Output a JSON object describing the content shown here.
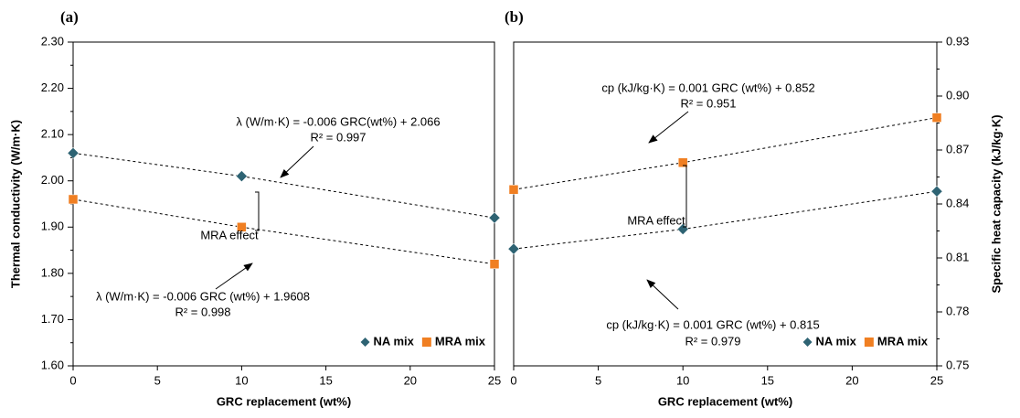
{
  "chart_data": [
    {
      "type": "scatter",
      "panel_label": "(a)",
      "x_label": "GRC replacement  (wt%)",
      "y_label": "Thermal conductivity  (W/m·K)",
      "x": [
        0,
        10,
        25
      ],
      "series": [
        {
          "name": "NA mix",
          "color": "#2e6373",
          "marker": "diamond",
          "values": [
            2.06,
            2.01,
            1.92
          ]
        },
        {
          "name": "MRA mix",
          "color": "#f07f22",
          "marker": "square",
          "values": [
            1.96,
            1.9,
            1.82
          ]
        }
      ],
      "xlim": [
        0,
        25
      ],
      "xticks": [
        0,
        5,
        10,
        15,
        20,
        25
      ],
      "ylim": [
        1.6,
        2.3
      ],
      "yticks": [
        {
          "value": 1.6,
          "label": "1.60"
        },
        {
          "value": 1.7,
          "label": "1.70"
        },
        {
          "value": 1.8,
          "label": "1.80"
        },
        {
          "value": 1.9,
          "label": "1.90"
        },
        {
          "value": 2.0,
          "label": "2.00"
        },
        {
          "value": 2.1,
          "label": "2.10"
        },
        {
          "value": 2.2,
          "label": "2.20"
        },
        {
          "value": 2.3,
          "label": "2.30"
        }
      ],
      "value_axis": "left",
      "trendline": true,
      "legend": "lower right",
      "annotations": [
        "λ (W/m·K) = -0.006 GRC(wt%) + 2.066",
        "R² = 0.997",
        "MRA effect",
        "λ (W/m·K) = -0.006 GRC (wt%) + 1.9608",
        "R² = 0.998"
      ]
    },
    {
      "type": "scatter",
      "panel_label": "(b)",
      "x_label": "GRC replacement  (wt%)",
      "y_label": "Specific heat capacity  (kJ/kg·K)",
      "x": [
        0,
        10,
        25
      ],
      "series": [
        {
          "name": "NA mix",
          "color": "#2e6373",
          "marker": "diamond",
          "values": [
            0.815,
            0.826,
            0.847
          ]
        },
        {
          "name": "MRA mix",
          "color": "#f07f22",
          "marker": "square",
          "values": [
            0.848,
            0.863,
            0.888
          ]
        }
      ],
      "xlim": [
        0,
        25
      ],
      "xticks": [
        0,
        5,
        10,
        15,
        20,
        25
      ],
      "ylim": [
        0.75,
        0.93
      ],
      "yticks": [
        0.75,
        0.78,
        0.81,
        0.84,
        0.87,
        {
          "value": 0.9,
          "label": "0.90"
        },
        0.93
      ],
      "value_axis": "right",
      "trendline": true,
      "legend": "lower right",
      "annotations": [
        "cp (kJ/kg·K) = 0.001 GRC (wt%) + 0.852",
        "R² = 0.951",
        "MRA effect",
        "cp (kJ/kg·K) = 0.001 GRC (wt%) + 0.815",
        "R² = 0.979"
      ]
    }
  ]
}
